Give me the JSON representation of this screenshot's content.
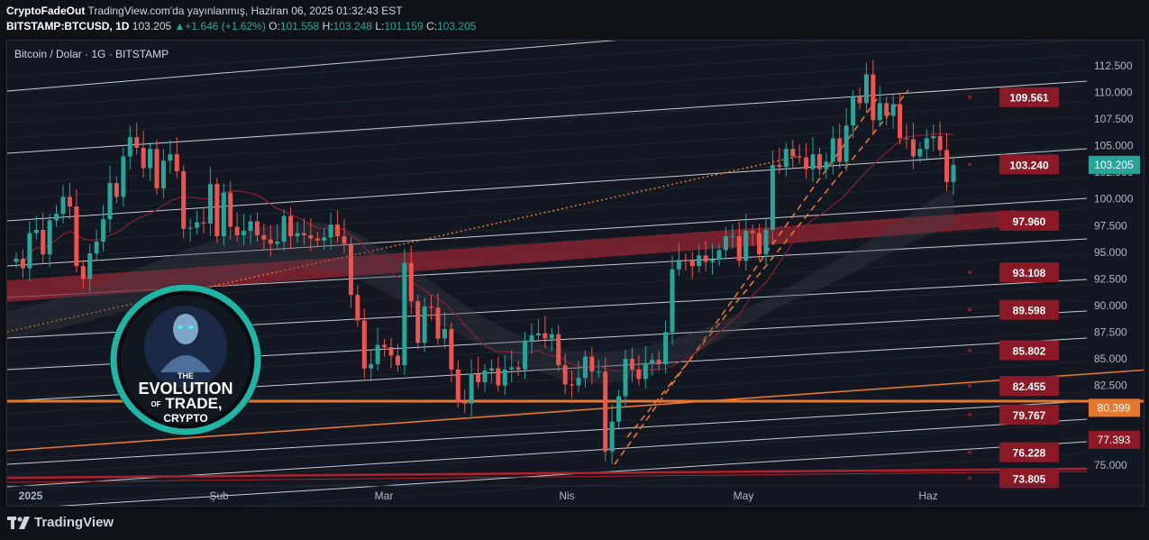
{
  "header": {
    "author": "CryptoFadeOut",
    "published": "TradingView.com'da yayınlanmış, Haziran 06, 2025 01:32:43 EST",
    "symbol": "BITSTAMP:BTCUSD, 1D",
    "last": "103.205",
    "change": "+1.646 (+1.62%)",
    "o_label": "O:",
    "o_value": "101.558",
    "h_label": "H:",
    "h_value": "103.248",
    "l_label": "L:",
    "l_value": "101.159",
    "c_label": "C:",
    "c_value": "103.205"
  },
  "legend": {
    "title": "Bitcoin / Dolar · 1G · BITSTAMP"
  },
  "brand": {
    "name": "TradingView"
  },
  "badge": {
    "line1": "THE",
    "line2": "EVOLUTION",
    "line3": "OF",
    "line4": "TRADE,",
    "line5": "CRYPTO"
  },
  "colors": {
    "up": "#26a69a",
    "down": "#ef5350",
    "support": "#e8772e",
    "resistance_band": "#9c2632",
    "label_bg": "#8b1a26",
    "current": "#26a69a",
    "orange_label": "#e8772e"
  },
  "chart_data": {
    "type": "candlestick",
    "title": "Bitcoin / Dolar · 1G · BITSTAMP",
    "x_ticks": [
      "2025",
      "Şub",
      "Mar",
      "Nis",
      "May",
      "Haz"
    ],
    "y_ticks": [
      "112.500",
      "110.000",
      "107.500",
      "105.000",
      "102.500",
      "100.000",
      "97.500",
      "95.000",
      "92.500",
      "90.000",
      "87.500",
      "85.000",
      "82.500",
      "80.000",
      "77.500",
      "75.000"
    ],
    "ylim": [
      72900,
      113600
    ],
    "level_labels": [
      {
        "text": "109.561",
        "value": 109561
      },
      {
        "text": "103.240",
        "value": 103240
      },
      {
        "text": "97.960",
        "value": 97960
      },
      {
        "text": "93.108",
        "value": 93108
      },
      {
        "text": "89.598",
        "value": 89598
      },
      {
        "text": "85.802",
        "value": 85802
      },
      {
        "text": "82.455",
        "value": 82455
      },
      {
        "text": "79.767",
        "value": 79767
      },
      {
        "text": "76.228",
        "value": 76228
      },
      {
        "text": "73.805",
        "value": 73805
      }
    ],
    "current_price": {
      "text": "103.205",
      "value": 103205
    },
    "orange_price": {
      "text": "80.399",
      "value": 80399
    },
    "red_price": {
      "text": "77.393",
      "value": 77393
    },
    "approx_closes": [
      94400,
      93500,
      96800,
      97100,
      94800,
      98000,
      98600,
      100200,
      99300,
      93700,
      92500,
      94900,
      96000,
      98100,
      101500,
      100200,
      104000,
      105800,
      104800,
      102900,
      104700,
      101000,
      103600,
      104200,
      102600,
      97200,
      97300,
      97800,
      97700,
      101400,
      96500,
      100600,
      97400,
      96600,
      97000,
      97900,
      96600,
      96200,
      95800,
      96000,
      98400,
      96500,
      96800,
      96600,
      96300,
      96100,
      96400,
      97600,
      96500,
      95800,
      91000,
      88600,
      84100,
      84500,
      86300,
      86100,
      85300,
      84400,
      94000,
      90400,
      86500,
      89900,
      89800,
      86900,
      87800,
      84000,
      81000,
      80800,
      83600,
      82800,
      83900,
      84100,
      82500,
      84000,
      84200,
      84000,
      86700,
      87200,
      87400,
      86900,
      87300,
      84400,
      82600,
      82500,
      83200,
      85200,
      83800,
      83800,
      76300,
      79100,
      81500,
      85000,
      84000,
      83100,
      84600,
      84900,
      84500,
      87500,
      93400,
      94300,
      94200,
      93700,
      94700,
      94100,
      94300,
      95200,
      96500,
      96500,
      94200,
      97000,
      96800,
      94800,
      97100,
      103200,
      103000,
      104700,
      104000,
      103900,
      102800,
      104200,
      102800,
      103500,
      105700,
      103500,
      106900,
      109600,
      109000,
      111700,
      107400,
      109000,
      107800,
      108900,
      105700,
      105600,
      104000,
      104700,
      105700,
      105900,
      104600,
      101600,
      103205
    ]
  }
}
